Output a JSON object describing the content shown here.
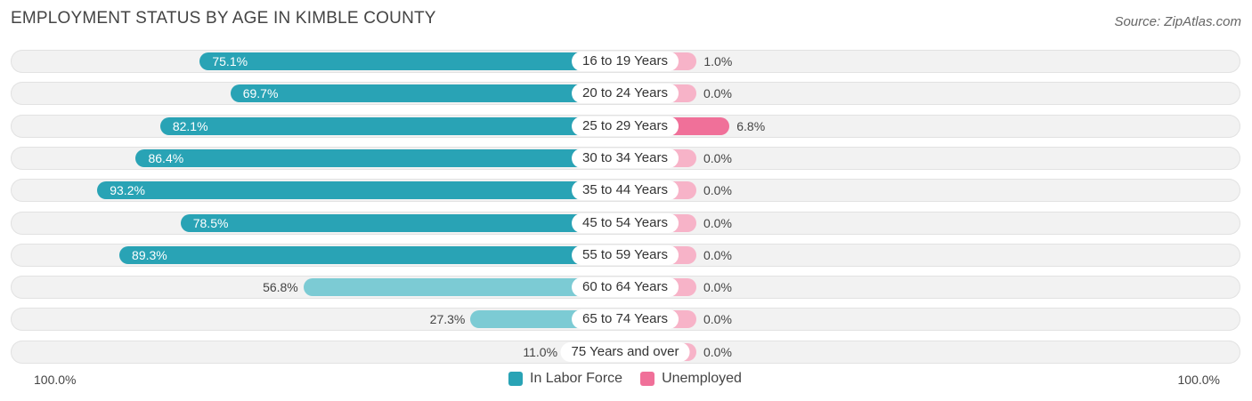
{
  "header": {
    "title": "EMPLOYMENT STATUS BY AGE IN KIMBLE COUNTY",
    "source": "Source: ZipAtlas.com"
  },
  "colors": {
    "labor_strong": "#29a3b5",
    "labor_light": "#7ccbd4",
    "unemployed_strong": "#f07099",
    "unemployed_light": "#f7b3c8"
  },
  "chart_data": {
    "type": "bar",
    "orientation": "horizontal-diverging",
    "title": "EMPLOYMENT STATUS BY AGE IN KIMBLE COUNTY",
    "categories": [
      "16 to 19 Years",
      "20 to 24 Years",
      "25 to 29 Years",
      "30 to 34 Years",
      "35 to 44 Years",
      "45 to 54 Years",
      "55 to 59 Years",
      "60 to 64 Years",
      "65 to 74 Years",
      "75 Years and over"
    ],
    "series": [
      {
        "name": "In Labor Force",
        "values": [
          75.1,
          69.7,
          82.1,
          86.4,
          93.2,
          78.5,
          89.3,
          56.8,
          27.3,
          11.0
        ],
        "labels": [
          "75.1%",
          "69.7%",
          "82.1%",
          "86.4%",
          "93.2%",
          "78.5%",
          "89.3%",
          "56.8%",
          "27.3%",
          "11.0%"
        ]
      },
      {
        "name": "Unemployed",
        "values": [
          1.0,
          0.0,
          6.8,
          0.0,
          0.0,
          0.0,
          0.0,
          0.0,
          0.0,
          0.0
        ],
        "labels": [
          "1.0%",
          "0.0%",
          "6.8%",
          "0.0%",
          "0.0%",
          "0.0%",
          "0.0%",
          "0.0%",
          "0.0%",
          "0.0%"
        ]
      }
    ],
    "axis": {
      "left_label": "100.0%",
      "right_label": "100.0%",
      "range": [
        0,
        100
      ]
    },
    "legend": {
      "position": "bottom-center",
      "items": [
        "In Labor Force",
        "Unemployed"
      ]
    }
  }
}
